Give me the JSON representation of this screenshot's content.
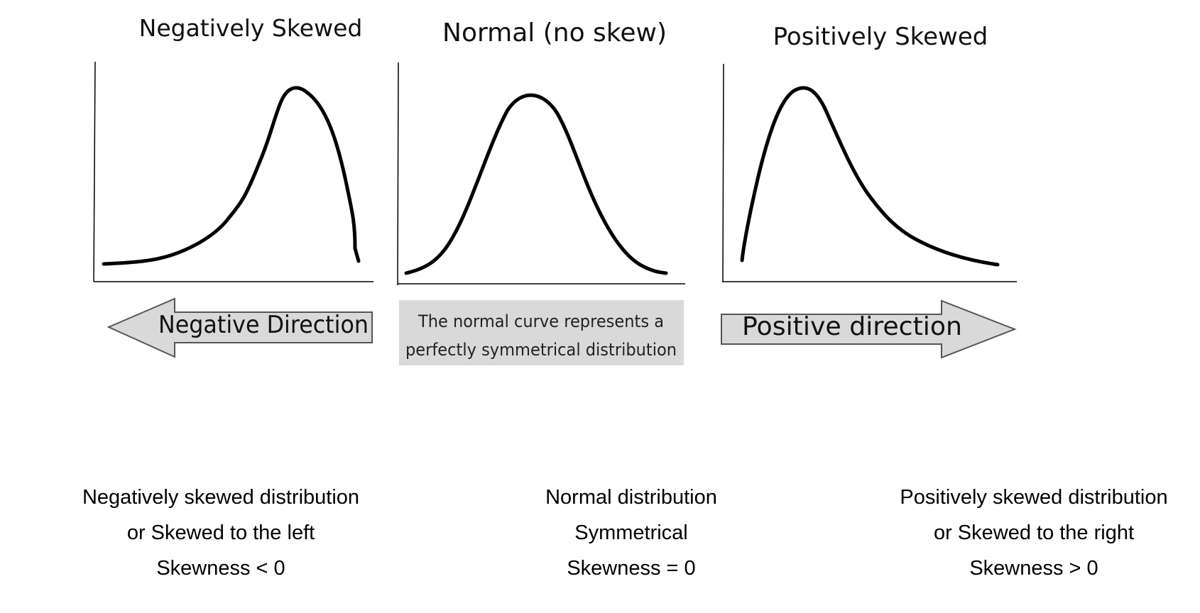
{
  "panels": [
    {
      "title": "Negatively Skewed",
      "arrow_label": "Negative Direction",
      "caption": [
        "Negatively skewed distribution",
        "or Skewed to the left",
        "Skewness < 0"
      ]
    },
    {
      "title": "Normal (no skew)",
      "note": [
        "The normal curve represents a",
        "perfectly symmetrical distribution"
      ],
      "caption": [
        "Normal distribution",
        "Symmetrical",
        "Skewness = 0"
      ]
    },
    {
      "title": "Positively Skewed",
      "arrow_label": "Positive direction",
      "caption": [
        "Positively skewed distribution",
        "or Skewed to the right",
        "Skewness > 0"
      ]
    }
  ],
  "colors": {
    "curve": "#000000",
    "axis": "#000000",
    "arrow_fill": "#d9d9d9",
    "note_fill": "#d9d9d9"
  }
}
